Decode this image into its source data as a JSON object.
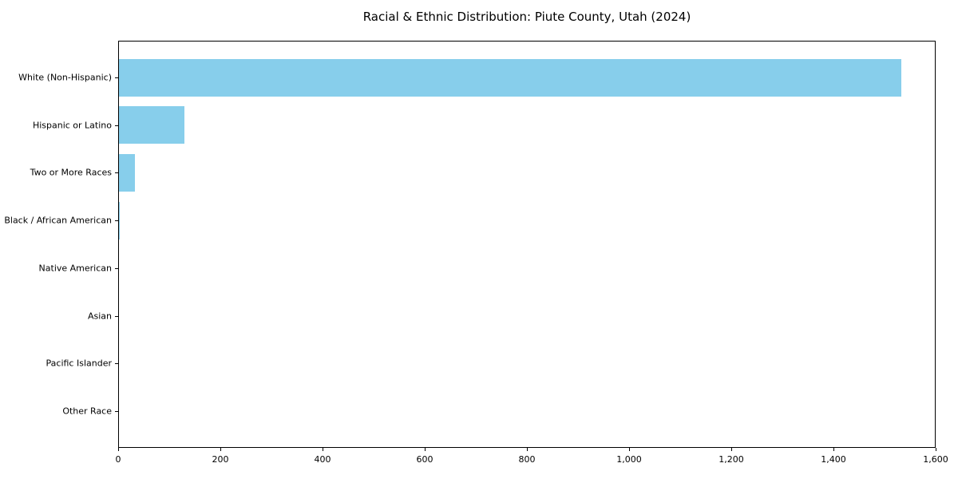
{
  "chart_data": {
    "type": "bar",
    "orientation": "horizontal",
    "title": "Racial & Ethnic Distribution: Piute County, Utah (2024)",
    "categories": [
      "White (Non-Hispanic)",
      "Hispanic or Latino",
      "Two or More Races",
      "Black / African American",
      "Native American",
      "Asian",
      "Pacific Islander",
      "Other Race"
    ],
    "values": [
      1531,
      128,
      31,
      2,
      0,
      0,
      0,
      0
    ],
    "xlabel": "",
    "ylabel": "",
    "xlim": [
      0,
      1600
    ],
    "xticks": [
      0,
      200,
      400,
      600,
      800,
      1000,
      1200,
      1400,
      1600
    ],
    "xtick_labels": [
      "0",
      "200",
      "400",
      "600",
      "800",
      "1,000",
      "1,200",
      "1,400",
      "1,600"
    ],
    "grid": false,
    "legend": false,
    "bar_color": "#87ceeb",
    "background_color": "#ffffff",
    "text_color": "#000000"
  }
}
